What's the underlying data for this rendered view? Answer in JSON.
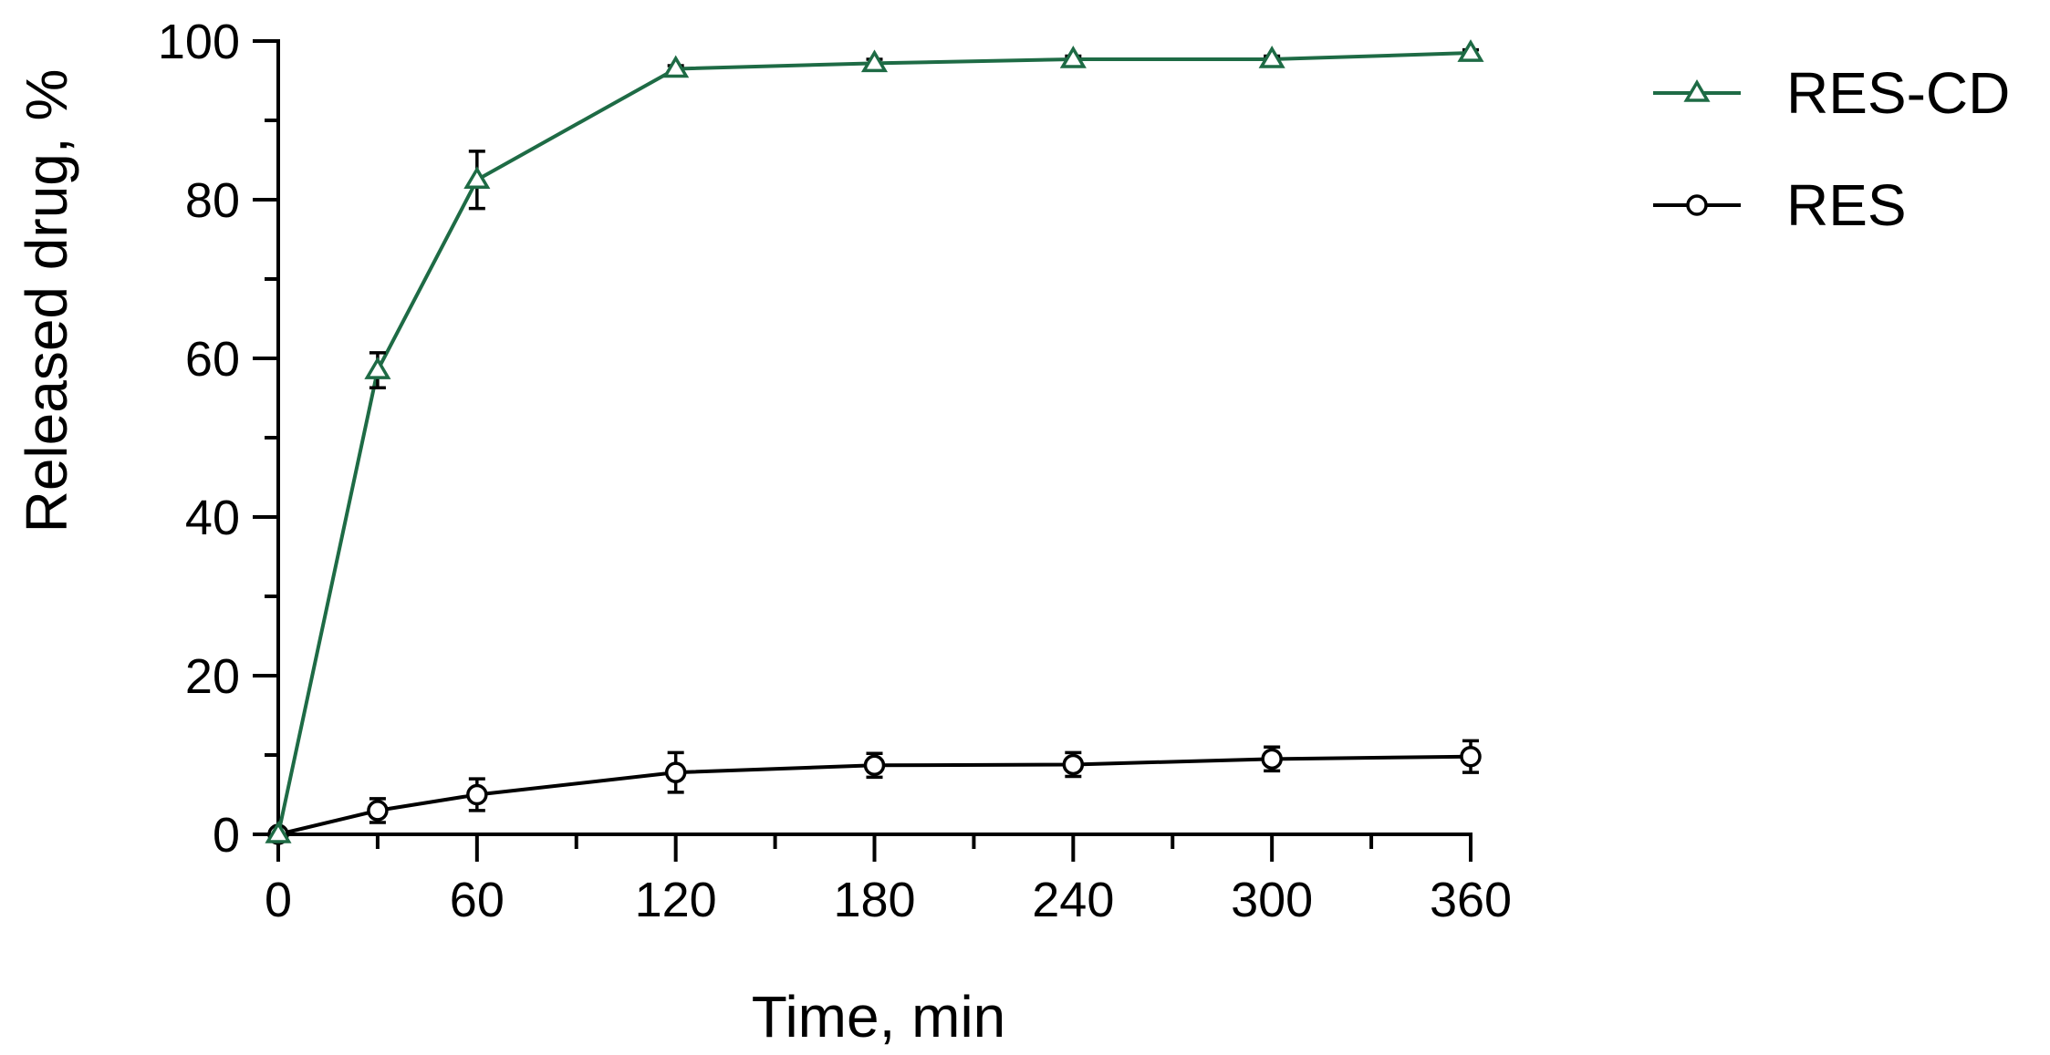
{
  "chart_data": {
    "type": "line",
    "title": "",
    "xlabel": "Time, min",
    "ylabel": "Released drug, %",
    "xlim": [
      0,
      360
    ],
    "ylim": [
      0,
      100
    ],
    "x_ticks": [
      0,
      60,
      120,
      180,
      240,
      300,
      360
    ],
    "x_tick_labels": [
      "0",
      "60",
      "120",
      "180",
      "240",
      "300",
      "360"
    ],
    "y_ticks": [
      0,
      20,
      40,
      60,
      80,
      100
    ],
    "y_tick_labels": [
      "0",
      "20",
      "40",
      "60",
      "80",
      "100"
    ],
    "x_minor_step": 30,
    "y_minor_step": 10,
    "grid": false,
    "legend_position": "top-right, outside plot",
    "series": [
      {
        "name": "RES-CD",
        "color": "#1e6b45",
        "marker": "triangle-open",
        "x": [
          0,
          30,
          60,
          120,
          180,
          240,
          300,
          360
        ],
        "values": [
          0,
          58.5,
          82.5,
          96.5,
          97.2,
          97.7,
          97.7,
          98.5
        ],
        "errors": [
          0,
          2.2,
          3.6,
          0.4,
          0.5,
          0.4,
          0.4,
          0.4
        ]
      },
      {
        "name": "RES",
        "color": "#000000",
        "marker": "circle-open",
        "x": [
          0,
          30,
          60,
          120,
          180,
          240,
          300,
          360
        ],
        "values": [
          0,
          3.0,
          5.0,
          7.8,
          8.7,
          8.8,
          9.5,
          9.8
        ],
        "errors": [
          0,
          1.5,
          2.0,
          2.5,
          1.5,
          1.5,
          1.5,
          2.0
        ]
      }
    ]
  }
}
